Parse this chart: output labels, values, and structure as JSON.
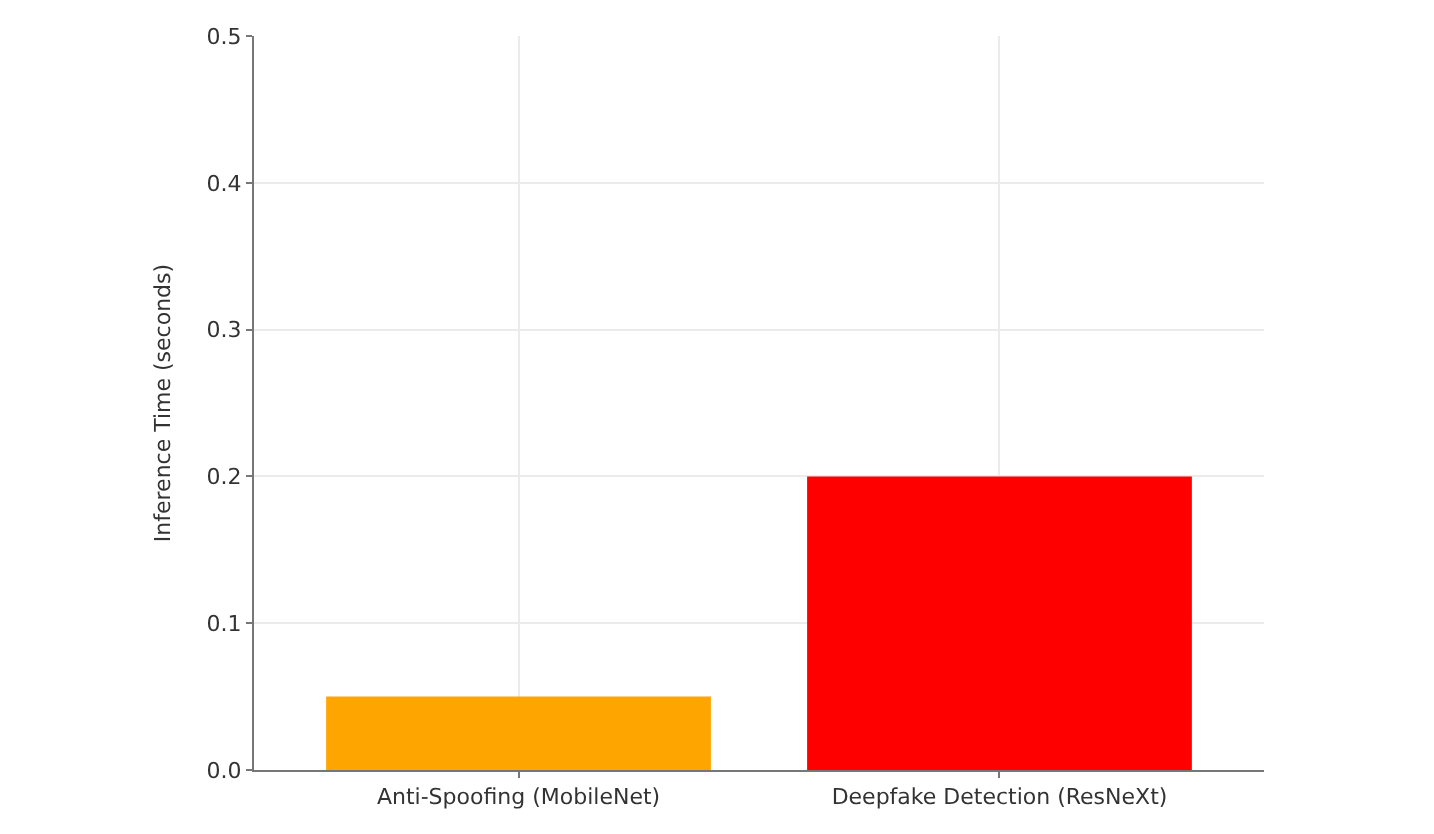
{
  "chart_data": {
    "type": "bar",
    "ylabel": "Inference Time (seconds)",
    "categories": [
      "Anti-Spoofing (MobileNet)",
      "Deepfake Detection (ResNeXt)"
    ],
    "values": [
      0.05,
      0.2
    ],
    "colors": [
      "#ffa500",
      "#ff0000"
    ],
    "ylim": [
      0,
      0.5
    ],
    "yticks": [
      {
        "value": 0,
        "label": "0.0"
      },
      0.1,
      0.2,
      0.3,
      0.4,
      0.5
    ],
    "grid": true
  }
}
